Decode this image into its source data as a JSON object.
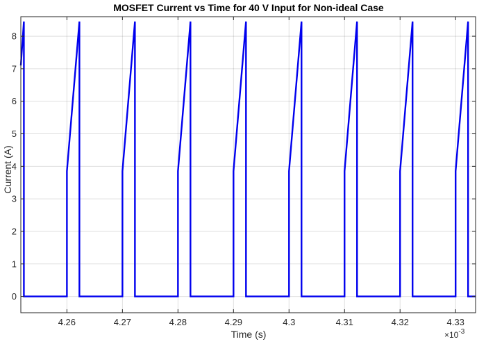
{
  "chart_data": {
    "type": "line",
    "title": "MOSFET Current vs Time for 40 V Input for Non-ideal Case",
    "xlabel": "Time (s)",
    "ylabel": "Current (A)",
    "x_exponent_label": "×10",
    "x_exponent_power": "-3",
    "xlim": [
      4.2517,
      4.3336
    ],
    "ylim": [
      -0.5,
      8.6
    ],
    "x_ticks": [
      4.26,
      4.27,
      4.28,
      4.29,
      4.3,
      4.31,
      4.32,
      4.33
    ],
    "x_tick_labels": [
      "4.26",
      "4.27",
      "4.28",
      "4.29",
      "4.3",
      "4.31",
      "4.32",
      "4.33"
    ],
    "y_ticks": [
      0,
      1,
      2,
      3,
      4,
      5,
      6,
      7,
      8
    ],
    "y_tick_labels": [
      "0",
      "1",
      "2",
      "3",
      "4",
      "5",
      "6",
      "7",
      "8"
    ],
    "grid": true,
    "series": [
      {
        "color": "#0000ee",
        "x": [
          4.2517,
          4.25225,
          4.25225,
          4.26,
          4.26,
          4.26225,
          4.26225,
          4.27,
          4.27,
          4.27225,
          4.27225,
          4.28,
          4.28,
          4.28225,
          4.28225,
          4.29,
          4.29,
          4.29225,
          4.29225,
          4.3,
          4.3,
          4.30225,
          4.30225,
          4.31,
          4.31,
          4.31225,
          4.31225,
          4.32,
          4.32,
          4.32225,
          4.32225,
          4.33,
          4.33,
          4.33225,
          4.33225,
          4.3336
        ],
        "y": [
          7.1,
          8.45,
          0,
          0,
          3.85,
          8.45,
          0,
          0,
          3.85,
          8.45,
          0,
          0,
          3.85,
          8.45,
          0,
          0,
          3.85,
          8.45,
          0,
          0,
          3.85,
          8.45,
          0,
          0,
          3.85,
          8.45,
          0,
          0,
          3.85,
          8.45,
          0,
          0,
          3.85,
          8.45,
          0,
          0
        ]
      }
    ]
  }
}
